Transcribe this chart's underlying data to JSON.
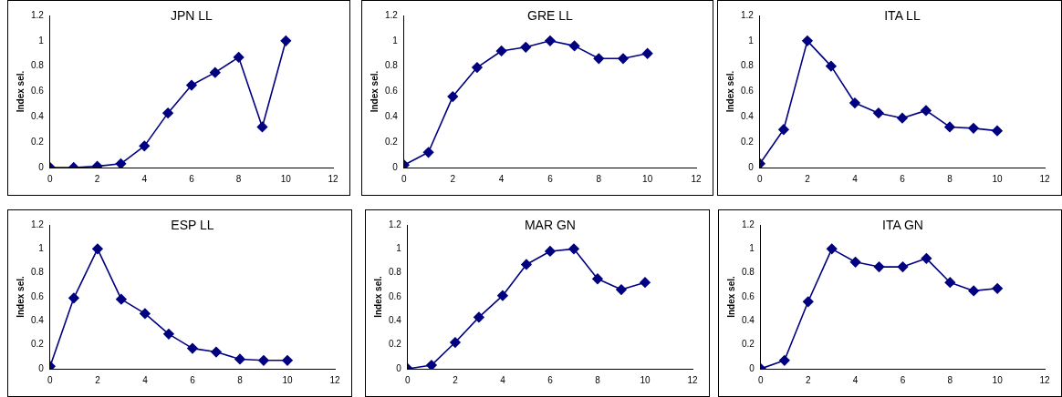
{
  "chart_data": [
    {
      "type": "line",
      "title": "JPN LL",
      "ylabel": "Index sel.",
      "x": [
        0,
        1,
        2,
        3,
        4,
        5,
        6,
        7,
        8,
        9,
        10
      ],
      "values": [
        0,
        0,
        0.01,
        0.03,
        0.17,
        0.43,
        0.65,
        0.75,
        0.87,
        0.32,
        1
      ],
      "color": "#000080",
      "marker": "diamond",
      "xlim": [
        0,
        12
      ],
      "xticks": [
        0,
        2,
        4,
        6,
        8,
        10,
        12
      ],
      "ylim": [
        0,
        1.2
      ],
      "yticks": [
        0,
        0.2,
        0.4,
        0.6,
        0.8,
        1,
        1.2
      ],
      "grid": false,
      "legend": false
    },
    {
      "type": "line",
      "title": "GRE LL",
      "ylabel": "Index sel.",
      "x": [
        0,
        1,
        2,
        3,
        4,
        5,
        6,
        7,
        8,
        9,
        10
      ],
      "values": [
        0.02,
        0.12,
        0.56,
        0.79,
        0.92,
        0.95,
        1,
        0.96,
        0.86,
        0.86,
        0.9
      ],
      "color": "#000080",
      "marker": "diamond",
      "xlim": [
        0,
        12
      ],
      "xticks": [
        0,
        2,
        4,
        6,
        8,
        10,
        12
      ],
      "ylim": [
        0,
        1.2
      ],
      "yticks": [
        0,
        0.2,
        0.4,
        0.6,
        0.8,
        1,
        1.2
      ],
      "grid": false,
      "legend": false
    },
    {
      "type": "line",
      "title": "ITA LL",
      "ylabel": "Index sel.",
      "x": [
        0,
        1,
        2,
        3,
        4,
        5,
        6,
        7,
        8,
        9,
        10
      ],
      "values": [
        0.03,
        0.3,
        1,
        0.8,
        0.51,
        0.43,
        0.39,
        0.45,
        0.32,
        0.31,
        0.29
      ],
      "color": "#000080",
      "marker": "diamond",
      "xlim": [
        0,
        12
      ],
      "xticks": [
        0,
        2,
        4,
        6,
        8,
        10,
        12
      ],
      "ylim": [
        0,
        1.2
      ],
      "yticks": [
        0,
        0.2,
        0.4,
        0.6,
        0.8,
        1,
        1.2
      ],
      "grid": false,
      "legend": false
    },
    {
      "type": "line",
      "title": "ESP LL",
      "ylabel": "Index sel.",
      "x": [
        0,
        1,
        2,
        3,
        4,
        5,
        6,
        7,
        8,
        9,
        10
      ],
      "values": [
        0.02,
        0.59,
        1,
        0.58,
        0.46,
        0.29,
        0.17,
        0.14,
        0.08,
        0.07,
        0.07
      ],
      "color": "#000080",
      "marker": "diamond",
      "xlim": [
        0,
        12
      ],
      "xticks": [
        0,
        2,
        4,
        6,
        8,
        10,
        12
      ],
      "ylim": [
        0,
        1.2
      ],
      "yticks": [
        0,
        0.2,
        0.4,
        0.6,
        0.8,
        1,
        1.2
      ],
      "grid": false,
      "legend": false
    },
    {
      "type": "line",
      "title": "MAR GN",
      "ylabel": "Index sel.",
      "x": [
        0,
        1,
        2,
        3,
        4,
        5,
        6,
        7,
        8,
        9,
        10
      ],
      "values": [
        0,
        0.03,
        0.22,
        0.43,
        0.61,
        0.87,
        0.98,
        1,
        0.75,
        0.66,
        0.72
      ],
      "color": "#000080",
      "marker": "diamond",
      "xlim": [
        0,
        12
      ],
      "xticks": [
        0,
        2,
        4,
        6,
        8,
        10,
        12
      ],
      "ylim": [
        0,
        1.2
      ],
      "yticks": [
        0,
        0.2,
        0.4,
        0.6,
        0.8,
        1,
        1.2
      ],
      "grid": false,
      "legend": false
    },
    {
      "type": "line",
      "title": "ITA GN",
      "ylabel": "Index sel.",
      "x": [
        0,
        1,
        2,
        3,
        4,
        5,
        6,
        7,
        8,
        9,
        10
      ],
      "values": [
        0,
        0.07,
        0.56,
        1,
        0.89,
        0.85,
        0.85,
        0.92,
        0.72,
        0.65,
        0.67
      ],
      "color": "#000080",
      "marker": "diamond",
      "xlim": [
        0,
        12
      ],
      "xticks": [
        0,
        2,
        4,
        6,
        8,
        10,
        12
      ],
      "ylim": [
        0,
        1.2
      ],
      "yticks": [
        0,
        0.2,
        0.4,
        0.6,
        0.8,
        1,
        1.2
      ],
      "grid": false,
      "legend": false
    }
  ]
}
